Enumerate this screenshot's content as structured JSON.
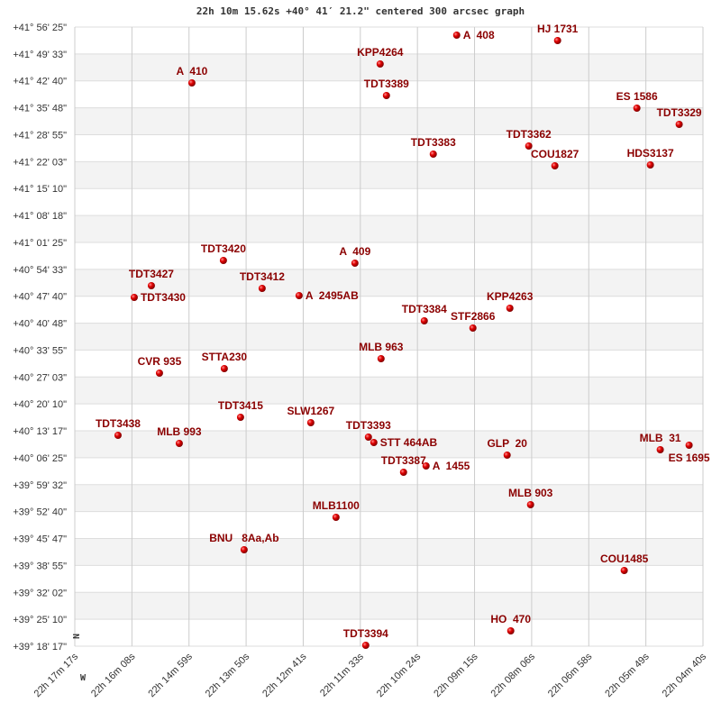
{
  "chart_data": {
    "type": "scatter",
    "title": "22h 10m 15.62s +40° 41′ 21.2\" centered 300 arcsec graph",
    "x_axis": {
      "unit": "RA hours",
      "reversed": true,
      "range": [
        22.288056,
        22.077222
      ],
      "tick_labels": [
        "22h 17m 17s",
        "22h 16m 08s",
        "22h 14m 59s",
        "22h 13m 50s",
        "22h 12m 41s",
        "22h 11m 33s",
        "22h 10m 24s",
        "22h 09m 15s",
        "22h 08m 06s",
        "22h 06m 58s",
        "22h 05m 49s",
        "22h 04m 40s"
      ],
      "direction_label": "W"
    },
    "y_axis": {
      "unit": "Dec degrees",
      "range": [
        39.304722,
        41.940278
      ],
      "tick_labels": [
        "+41° 56' 25\"",
        "+41° 49' 33\"",
        "+41° 42' 40\"",
        "+41° 35' 48\"",
        "+41° 28' 55\"",
        "+41° 22' 03\"",
        "+41° 15' 10\"",
        "+41° 08' 18\"",
        "+41° 01' 25\"",
        "+40° 54' 33\"",
        "+40° 47' 40\"",
        "+40° 40' 48\"",
        "+40° 33' 55\"",
        "+40° 27' 03\"",
        "+40° 20' 10\"",
        "+40° 13' 17\"",
        "+40° 06' 25\"",
        "+39° 59' 32\"",
        "+39° 52' 40\"",
        "+39° 45' 47\"",
        "+39° 38' 55\"",
        "+39° 32' 02\"",
        "+39° 25' 10\"",
        "+39° 18' 17\""
      ],
      "direction_label": "N"
    },
    "grid": true,
    "colors": {
      "point": "#dd0000",
      "label": "#8b0000",
      "band": "#f3f3f3",
      "grid": "#cccccc"
    },
    "points": [
      {
        "label": "A  408",
        "ra": 22.15988,
        "dec": 41.90575
      },
      {
        "label": "HJ 1731",
        "ra": 22.12602,
        "dec": 41.88273
      },
      {
        "label": "KPP4264",
        "ra": 22.18557,
        "dec": 41.78299
      },
      {
        "label": "A  410",
        "ra": 22.24876,
        "dec": 41.70242
      },
      {
        "label": "TDT3389",
        "ra": 22.18346,
        "dec": 41.64871
      },
      {
        "label": "ES 1586",
        "ra": 22.09941,
        "dec": 41.595
      },
      {
        "label": "TDT3329",
        "ra": 22.08521,
        "dec": 41.52595
      },
      {
        "label": "TDT3362",
        "ra": 22.1357,
        "dec": 41.43388
      },
      {
        "label": "TDT3383",
        "ra": 22.16774,
        "dec": 41.39935
      },
      {
        "label": "COU1827",
        "ra": 22.12693,
        "dec": 41.34947
      },
      {
        "label": "HDS3137",
        "ra": 22.09488,
        "dec": 41.35331
      },
      {
        "label": "TDT3420",
        "ra": 22.23818,
        "dec": 40.94665
      },
      {
        "label": "A  409",
        "ra": 22.19404,
        "dec": 40.93514
      },
      {
        "label": "TDT3427",
        "ra": 22.26236,
        "dec": 40.83923
      },
      {
        "label": "TDT3412",
        "ra": 22.22518,
        "dec": 40.82772
      },
      {
        "label": "A  2495AB",
        "ra": 22.21278,
        "dec": 40.79703
      },
      {
        "label": "TDT3430",
        "ra": 22.26811,
        "dec": 40.78936
      },
      {
        "label": "KPP4263",
        "ra": 22.14204,
        "dec": 40.74332
      },
      {
        "label": "TDT3384",
        "ra": 22.17076,
        "dec": 40.68961
      },
      {
        "label": "STF2866",
        "ra": 22.15444,
        "dec": 40.65892
      },
      {
        "label": "MLB 963",
        "ra": 22.18527,
        "dec": 40.52848
      },
      {
        "label": "CVR 935",
        "ra": 22.25964,
        "dec": 40.4671
      },
      {
        "label": "STTA230",
        "ra": 22.23788,
        "dec": 40.48628
      },
      {
        "label": "TDT3415",
        "ra": 22.23243,
        "dec": 40.27912
      },
      {
        "label": "SLW1267",
        "ra": 22.20885,
        "dec": 40.2561
      },
      {
        "label": "TDT3438",
        "ra": 22.27355,
        "dec": 40.20239
      },
      {
        "label": "MLB 993",
        "ra": 22.25299,
        "dec": 40.16786
      },
      {
        "label": "TDT3393",
        "ra": 22.18951,
        "dec": 40.19472
      },
      {
        "label": "STT 464AB",
        "ra": 22.18769,
        "dec": 40.1717
      },
      {
        "label": "A  1455",
        "ra": 22.17016,
        "dec": 40.07195
      },
      {
        "label": "TDT3387",
        "ra": 22.17772,
        "dec": 40.0451
      },
      {
        "label": "GLP  20",
        "ra": 22.14295,
        "dec": 40.11799
      },
      {
        "label": "MLB  31",
        "ra": 22.09156,
        "dec": 40.14101
      },
      {
        "label": "ES 1695",
        "ra": 22.08188,
        "dec": 40.16019
      },
      {
        "label": "MLB1100",
        "ra": 22.20039,
        "dec": 39.85328
      },
      {
        "label": "MLB 903",
        "ra": 22.13509,
        "dec": 39.90699
      },
      {
        "label": "BNU   8Aa,Ab",
        "ra": 22.23123,
        "dec": 39.71517
      },
      {
        "label": "COU1485",
        "ra": 22.10365,
        "dec": 39.62693
      },
      {
        "label": "HO  470",
        "ra": 22.14174,
        "dec": 39.36989
      },
      {
        "label": "TDT3394",
        "ra": 22.19041,
        "dec": 39.30851
      }
    ]
  }
}
